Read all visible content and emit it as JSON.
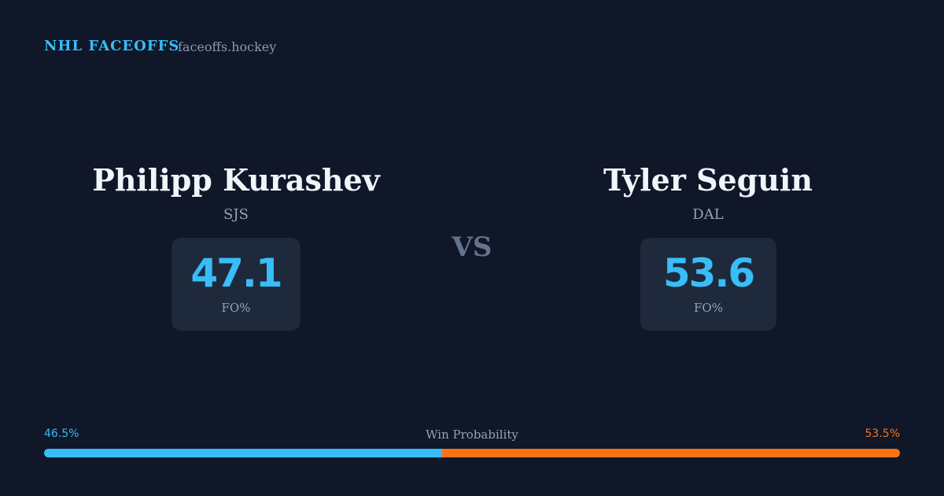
{
  "header": {
    "title": "NHL FACEOFFS",
    "site": "faceoffs.hockey"
  },
  "players": [
    {
      "name": "Philipp Kurashev",
      "team": "SJS",
      "fo_pct": "47.1",
      "fo_label": "FO%"
    },
    {
      "name": "Tyler Seguin",
      "team": "DAL",
      "fo_pct": "53.6",
      "fo_label": "FO%"
    }
  ],
  "vs": "VS",
  "win_probability": {
    "label": "Win Probability",
    "values": [
      46.5,
      53.5
    ],
    "value_labels": [
      "46.5%",
      "53.5%"
    ],
    "colors": [
      "#38bdf8",
      "#f97316"
    ]
  }
}
